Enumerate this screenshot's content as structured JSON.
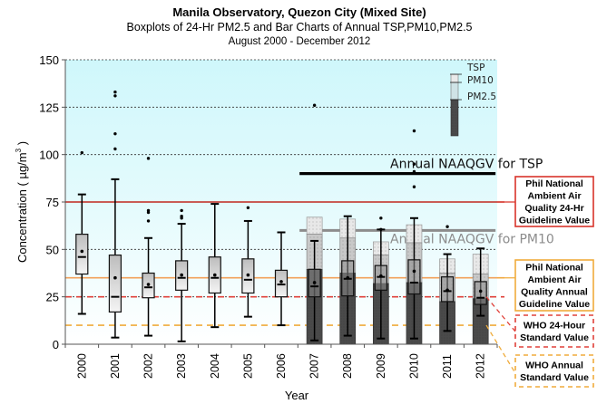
{
  "chart_data": {
    "type": "boxplot+bar",
    "title": "Manila Observatory, Quezon City (Mixed Site)",
    "subtitle": "Boxplots of 24-Hr PM2.5 and Bar Charts of Annual TSP,PM10,PM2.5",
    "period": "August 2000 - December 2012",
    "xlabel": "Year",
    "ylabel": "Concentration ( µg/m³ )",
    "ylabel_main": "Concentration ( µg/m",
    "ylabel_sup": "3",
    "ylabel_close": " )",
    "ylim": [
      0,
      150
    ],
    "yticks": [
      0,
      25,
      50,
      75,
      100,
      125,
      150
    ],
    "ytick_labels": [
      "0",
      "25",
      "50",
      "75",
      "100",
      "125",
      "150"
    ],
    "grid": "horizontal dashed",
    "categories": [
      "2000",
      "2001",
      "2002",
      "2003",
      "2004",
      "2005",
      "2006",
      "2007",
      "2008",
      "2009",
      "2010",
      "2011",
      "2012"
    ],
    "boxplots_pm25_24hr": [
      {
        "year": "2000",
        "whisker_low": 16,
        "q1": 37,
        "median": 46,
        "mean": 49,
        "q3": 58,
        "whisker_high": 79,
        "outliers": [
          101
        ]
      },
      {
        "year": "2001",
        "whisker_low": 3.5,
        "q1": 17,
        "median": 25,
        "mean": 35,
        "q3": 47,
        "whisker_high": 87,
        "outliers": [
          133,
          131,
          111,
          103
        ]
      },
      {
        "year": "2002",
        "whisker_low": 4.5,
        "q1": 24.5,
        "median": 30,
        "mean": 31.5,
        "q3": 37.5,
        "whisker_high": 56,
        "outliers": [
          98,
          70.5,
          69.5,
          65
        ]
      },
      {
        "year": "2003",
        "whisker_low": 1.5,
        "q1": 28.5,
        "median": 35,
        "mean": 36.5,
        "q3": 44,
        "whisker_high": 63.5,
        "outliers": [
          70.5,
          67.5,
          66.5
        ]
      },
      {
        "year": "2004",
        "whisker_low": 9,
        "q1": 27,
        "median": 35,
        "mean": 36.5,
        "q3": 46,
        "whisker_high": 74,
        "outliers": []
      },
      {
        "year": "2005",
        "whisker_low": 14.5,
        "q1": 27,
        "median": 34,
        "mean": 36.5,
        "q3": 45,
        "whisker_high": 65,
        "outliers": [
          72
        ]
      },
      {
        "year": "2006",
        "whisker_low": 10,
        "q1": 25,
        "median": 31.5,
        "mean": 33,
        "q3": 39,
        "whisker_high": 59,
        "outliers": []
      },
      {
        "year": "2007",
        "whisker_low": 2,
        "q1": 25,
        "median": 30.5,
        "mean": 32.5,
        "q3": 39.5,
        "whisker_high": 54.5,
        "outliers": [
          126
        ]
      },
      {
        "year": "2008",
        "whisker_low": 4.5,
        "q1": 25.5,
        "median": 34.5,
        "mean": 35,
        "q3": 44,
        "whisker_high": 67.5,
        "outliers": []
      },
      {
        "year": "2009",
        "whisker_low": 3,
        "q1": 28.5,
        "median": 35.5,
        "mean": 36,
        "q3": 41.5,
        "whisker_high": 60.5,
        "outliers": [
          66.5,
          60.5
        ]
      },
      {
        "year": "2010",
        "whisker_low": 3,
        "q1": 26.5,
        "median": 32.5,
        "mean": 38.5,
        "q3": 44.5,
        "whisker_high": 66.5,
        "outliers": [
          112.5,
          95,
          91,
          83
        ]
      },
      {
        "year": "2011",
        "whisker_low": 7,
        "q1": 22.5,
        "median": 28,
        "mean": 28.5,
        "q3": 35.5,
        "whisker_high": 47.5,
        "outliers": [
          62
        ]
      },
      {
        "year": "2012",
        "whisker_low": 15,
        "q1": 21,
        "median": 24.5,
        "mean": 28,
        "q3": 33,
        "whisker_high": 50.5,
        "outliers": []
      }
    ],
    "annual_bars": [
      {
        "year": "2007",
        "TSP": 67,
        "PM10": 58,
        "PM2.5": 39.5
      },
      {
        "year": "2008",
        "TSP": 66,
        "PM10": 56,
        "PM2.5": 37.5
      },
      {
        "year": "2009",
        "TSP": 54,
        "PM10": 47,
        "PM2.5": 32
      },
      {
        "year": "2010",
        "TSP": 63,
        "PM10": 53.5,
        "PM2.5": 32.5
      },
      {
        "year": "2011",
        "TSP": 45,
        "PM10": 37.5,
        "PM2.5": 22.5
      },
      {
        "year": "2012",
        "TSP": 47.5,
        "PM10": 37,
        "PM2.5": 24
      }
    ],
    "bar_legend": [
      "TSP",
      "PM10",
      "PM2.5"
    ],
    "reference_lines": [
      {
        "name": "Annual NAAQGV for TSP",
        "value": 90,
        "color": "#000000",
        "style": "solid",
        "label": "Annual NAAQGV for TSP"
      },
      {
        "name": "Annual NAAQGV for PM10",
        "value": 60,
        "color": "#8c8c8c",
        "style": "solid",
        "label": "Annual NAAQGV for PM10"
      },
      {
        "name": "Phil National Ambient Air Quality 24-Hr Guideline Value",
        "value": 75,
        "color": "#c0281e",
        "style": "solid"
      },
      {
        "name": "Phil National Ambient Air Quality Annual Guideline Value",
        "value": 35,
        "color": "#f2a15a",
        "style": "solid"
      },
      {
        "name": "WHO 24-Hour Standard Value",
        "value": 25,
        "color": "#e0413a",
        "style": "dashed"
      },
      {
        "name": "WHO Annual Standard Value",
        "value": 10,
        "color": "#f0ac3c",
        "style": "dashed"
      }
    ],
    "annotations": [
      {
        "text_lines": [
          "Phil National",
          "Ambient Air",
          "Quality 24-Hr",
          "Guideline Value"
        ],
        "border": "#d9342b",
        "style": "solid"
      },
      {
        "text_lines": [
          "Phil National",
          "Ambient Air",
          "Quality Annual",
          "Guideline Value"
        ],
        "border": "#f0ac3c",
        "style": "solid"
      },
      {
        "text_lines": [
          "WHO 24-Hour",
          "Standard Value"
        ],
        "border": "#e0413a",
        "style": "dashed"
      },
      {
        "text_lines": [
          "WHO Annual",
          "Standard Value"
        ],
        "border": "#f0ac3c",
        "style": "dashed"
      }
    ]
  }
}
